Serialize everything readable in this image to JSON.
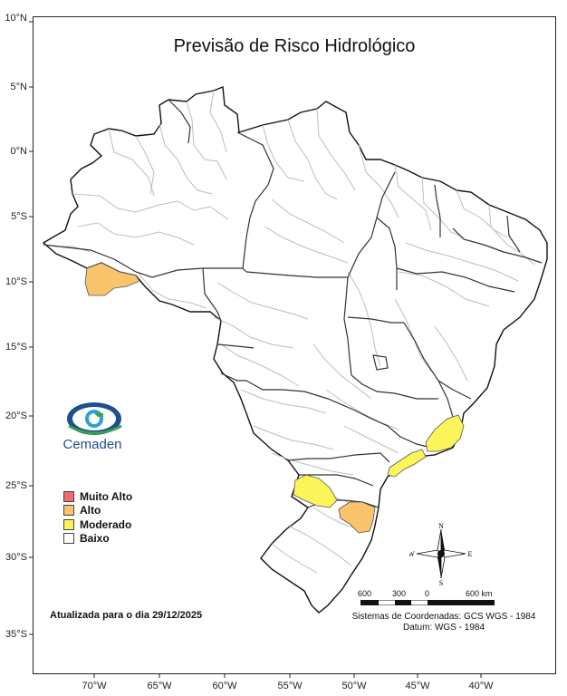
{
  "title": "Previsão de Risco Hidrológico",
  "lat_labels": [
    "10°N",
    "5°N",
    "0°N",
    "5°S",
    "10°S",
    "15°S",
    "20°S",
    "25°S",
    "30°S",
    "35°S"
  ],
  "lon_labels": [
    "70°W",
    "65°W",
    "60°W",
    "55°W",
    "50°W",
    "45°W",
    "40°W"
  ],
  "legend": [
    {
      "label": "Muito Alto",
      "color": "#f26b6b"
    },
    {
      "label": "Alto",
      "color": "#f9c46b"
    },
    {
      "label": "Moderado",
      "color": "#fbf55a"
    },
    {
      "label": "Baixo",
      "color": "#ffffff"
    }
  ],
  "updated": "Atualizada para o dia 29/12/2025",
  "logo_text": "Cemaden",
  "compass": {
    "n": "N",
    "s": "S",
    "e": "E",
    "w": "W"
  },
  "scale": {
    "labels": [
      "600",
      "300",
      "0",
      "600 km"
    ]
  },
  "crs": {
    "line1": "Sistemas de Coordenadas: GCS WGS - 1984",
    "line2": "Datum: WGS - 1984"
  },
  "colors": {
    "alto": "#f9c46b",
    "moderado": "#fbf55a",
    "border_state": "#333333",
    "border_basin": "#b9b9b9"
  }
}
